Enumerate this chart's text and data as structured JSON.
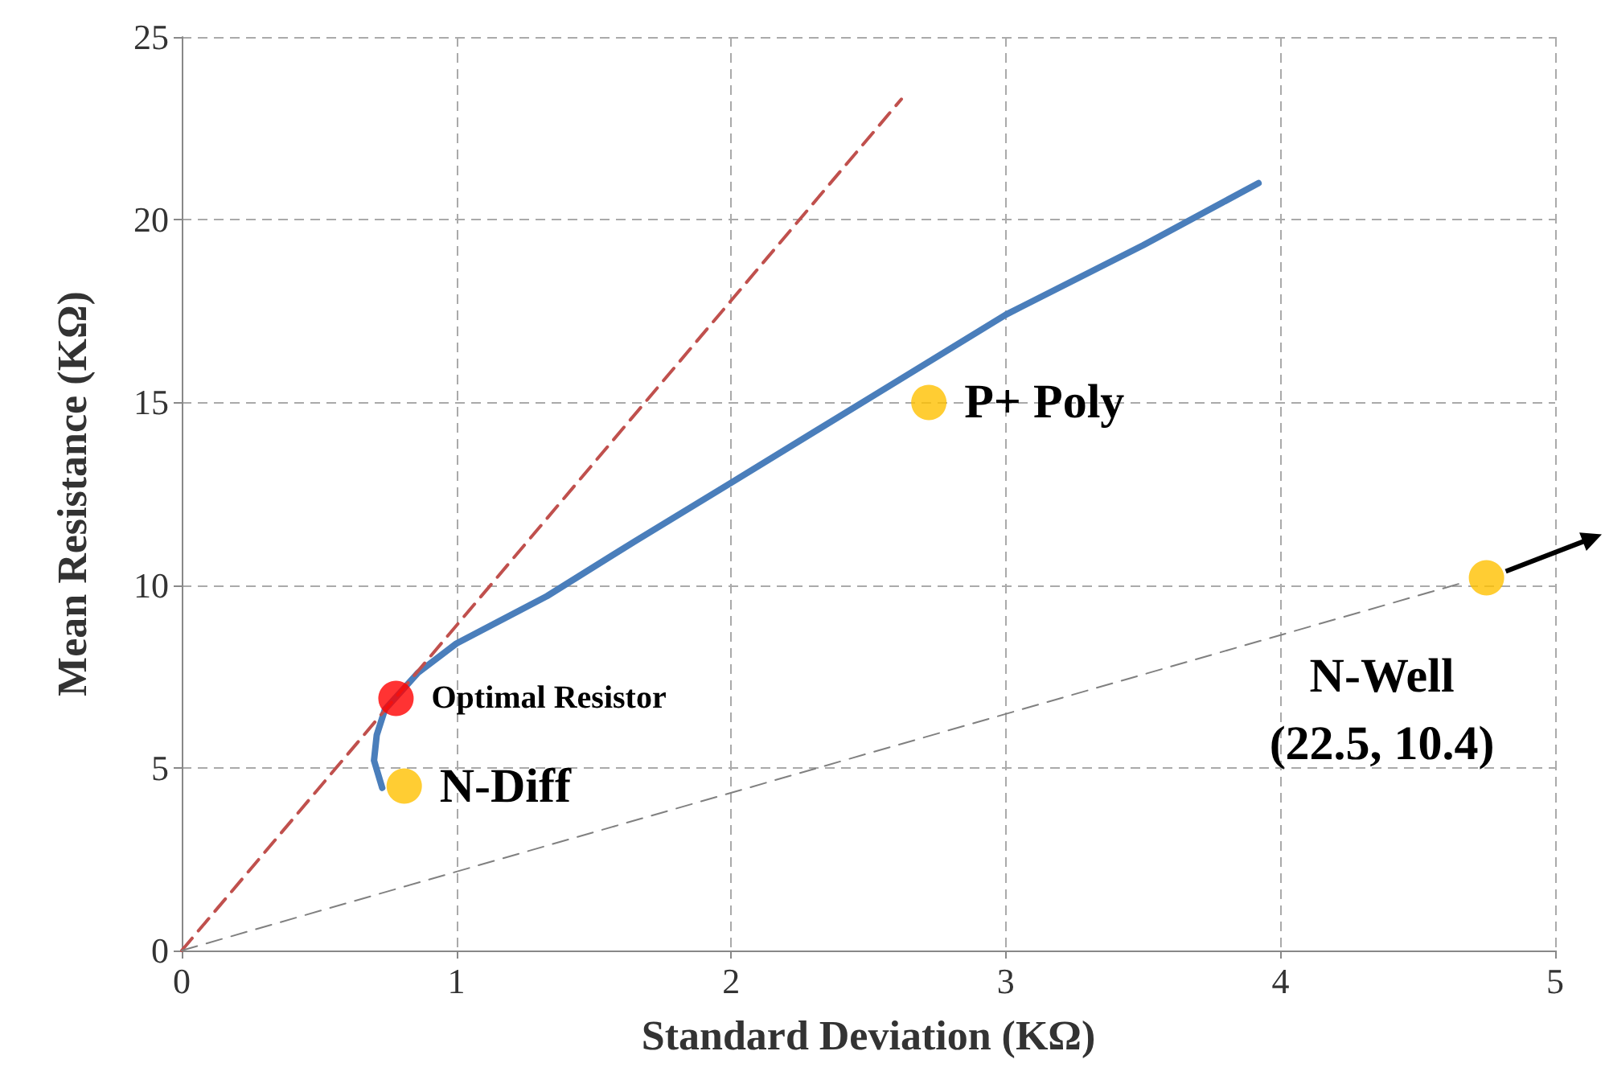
{
  "chart_data": {
    "type": "line",
    "xlabel": "Standard Deviation (KΩ)",
    "ylabel": "Mean Resistance (KΩ)",
    "xlim": [
      0,
      5
    ],
    "xticks": [
      0,
      1,
      2,
      3,
      4,
      5
    ],
    "ylim": [
      0,
      25
    ],
    "yticks": [
      0,
      5,
      10,
      15,
      20,
      25
    ],
    "grid": true,
    "series": [
      {
        "color": "#4a7ebb",
        "marker": "none",
        "line_style": "solid",
        "x": [
          0.73,
          0.7,
          0.71,
          0.74,
          0.86,
          1.0,
          1.33,
          1.65,
          2.0,
          2.5,
          3.0,
          3.5,
          3.92
        ],
        "values": [
          4.45,
          5.2,
          5.9,
          6.6,
          7.6,
          8.4,
          9.7,
          11.2,
          12.8,
          15.1,
          17.4,
          19.3,
          21.0
        ]
      },
      {
        "color": "#c0504d",
        "marker": "none",
        "line_style": "dashed",
        "x": [
          0,
          2.62
        ],
        "values": [
          0,
          23.3
        ]
      },
      {
        "color": "#808080",
        "marker": "none",
        "line_style": "dashed",
        "x": [
          0,
          4.68
        ],
        "values": [
          0,
          10.1
        ]
      },
      {
        "type": "scatter",
        "marker": "circle",
        "x": [
          0.78,
          0.81,
          2.72,
          4.75
        ],
        "values": [
          6.9,
          4.5,
          15.0,
          10.2
        ],
        "colors": [
          "#ff0000",
          "#ffc000",
          "#ffc000",
          "#ffc000"
        ]
      }
    ],
    "annotations": [
      {
        "text": "Optimal Resistor",
        "x": 0.78,
        "y": 6.9
      },
      {
        "text": "N-Diff",
        "x": 0.81,
        "y": 4.5
      },
      {
        "text": "P+ Poly",
        "x": 2.72,
        "y": 15.0
      },
      {
        "text": "N-Well\n(22.5, 10.4)",
        "x": 4.75,
        "y": 10.2
      }
    ]
  }
}
